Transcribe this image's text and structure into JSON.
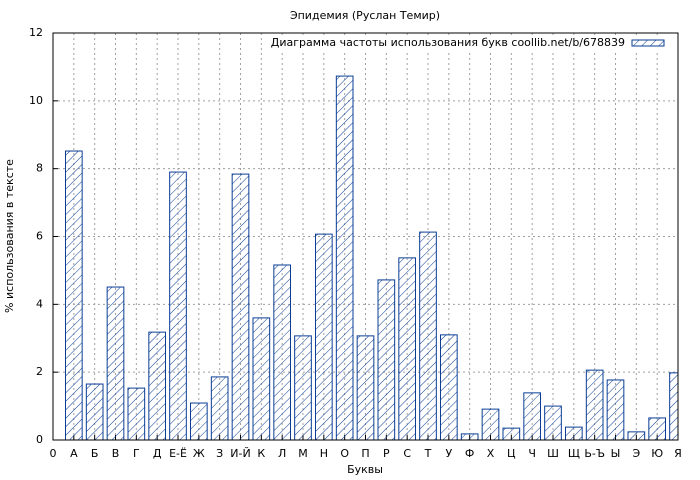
{
  "chart_data": {
    "type": "bar",
    "title": "Эпидемия (Руслан Темир)",
    "x_label": "Буквы",
    "y_label": "% использования в тексте",
    "x": [
      1,
      2,
      3,
      4,
      5,
      6,
      7,
      8,
      9,
      10,
      11,
      12,
      13,
      14,
      15,
      16,
      17,
      18,
      19,
      20,
      21,
      22,
      23,
      24,
      25,
      26,
      27,
      28,
      29,
      30
    ],
    "series": [
      {
        "name": "Диаграмма частоты использования букв coollib.net/b/678839",
        "color": "#0a3d96",
        "values": [
          8.52,
          1.65,
          4.51,
          1.53,
          3.18,
          7.9,
          1.09,
          1.86,
          7.84,
          3.6,
          5.16,
          3.07,
          6.07,
          10.73,
          3.07,
          4.72,
          5.37,
          6.13,
          3.1,
          0.18,
          0.91,
          0.35,
          1.39,
          1.0,
          0.38,
          2.06,
          1.77,
          0.24,
          0.65,
          1.98
        ]
      }
    ],
    "xlim": [
      0,
      30
    ],
    "xticks": [
      0,
      {
        "value": 1,
        "label": "А"
      },
      {
        "value": 2,
        "label": "Б"
      },
      {
        "value": 3,
        "label": "В"
      },
      {
        "value": 4,
        "label": "Г"
      },
      {
        "value": 5,
        "label": "Д"
      },
      {
        "value": 6,
        "label": "Е-Ё"
      },
      {
        "value": 7,
        "label": "Ж"
      },
      {
        "value": 8,
        "label": "З"
      },
      {
        "value": 9,
        "label": "И-Й"
      },
      {
        "value": 10,
        "label": "К"
      },
      {
        "value": 11,
        "label": "Л"
      },
      {
        "value": 12,
        "label": "М"
      },
      {
        "value": 13,
        "label": "Н"
      },
      {
        "value": 14,
        "label": "О"
      },
      {
        "value": 15,
        "label": "П"
      },
      {
        "value": 16,
        "label": "Р"
      },
      {
        "value": 17,
        "label": "С"
      },
      {
        "value": 18,
        "label": "Т"
      },
      {
        "value": 19,
        "label": "У"
      },
      {
        "value": 20,
        "label": "Ф"
      },
      {
        "value": 21,
        "label": "Х"
      },
      {
        "value": 22,
        "label": "Ц"
      },
      {
        "value": 23,
        "label": "Ч"
      },
      {
        "value": 24,
        "label": "Ш"
      },
      {
        "value": 25,
        "label": "Щ"
      },
      {
        "value": 26,
        "label": "Ь-Ъ"
      },
      {
        "value": 27,
        "label": "Ы"
      },
      {
        "value": 28,
        "label": "Э"
      },
      {
        "value": 29,
        "label": "Ю"
      },
      {
        "value": 30,
        "label": "Я"
      }
    ],
    "ylim": [
      0,
      12
    ],
    "yticks": [
      0,
      2,
      4,
      6,
      8,
      10,
      12
    ],
    "grid": true,
    "legend": "top-right"
  }
}
